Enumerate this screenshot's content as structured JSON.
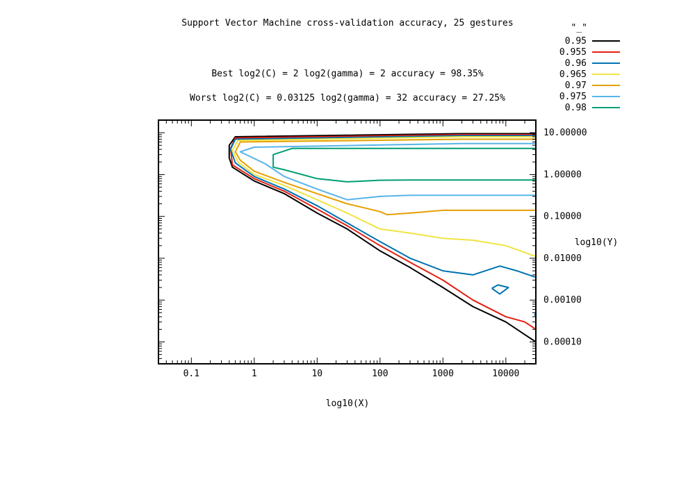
{
  "chart_data": {
    "type": "contour",
    "title": "Support Vector Machine cross-validation accuracy, 25 gestures",
    "annotations": [
      "Best log2(C) = 2  log2(gamma) = 2  accuracy = 98.35%",
      "Worst log2(C) = 0.03125  log2(gamma) = 32   accuracy = 27.25%"
    ],
    "xlabel": "log10(X)",
    "ylabel": "log10(Y)",
    "x_scale": "log",
    "y_scale": "log",
    "xlim": [
      0.03,
      30000
    ],
    "ylim": [
      3e-05,
      20
    ],
    "x_ticks": [
      {
        "value": 0.1,
        "label": "0.1"
      },
      {
        "value": 1,
        "label": "1"
      },
      {
        "value": 10,
        "label": "10"
      },
      {
        "value": 100,
        "label": "100"
      },
      {
        "value": 1000,
        "label": "1000"
      },
      {
        "value": 10000,
        "label": "10000"
      }
    ],
    "y_ticks": [
      {
        "value": 10,
        "label": "10.00000"
      },
      {
        "value": 1,
        "label": "1.00000"
      },
      {
        "value": 0.1,
        "label": "0.10000"
      },
      {
        "value": 0.01,
        "label": "0.01000"
      },
      {
        "value": 0.001,
        "label": "0.00100"
      },
      {
        "value": 0.0001,
        "label": "0.00010"
      }
    ],
    "legend_title": "\"_\"",
    "legend_position": "top-right, outside plot",
    "series": [
      {
        "name": "0.95",
        "color": "#000000",
        "x": [
          30000,
          2000,
          2000,
          0.5,
          0.4,
          0.4,
          0.45,
          1,
          3,
          10,
          30,
          100,
          300,
          1000,
          3000,
          10000,
          20000,
          30000
        ],
        "y": [
          9.5,
          9.5,
          9.5,
          8,
          5,
          2.5,
          1.5,
          0.7,
          0.35,
          0.12,
          0.05,
          0.015,
          0.006,
          0.002,
          0.0007,
          0.0003,
          0.00015,
          0.0001
        ]
      },
      {
        "name": "0.955",
        "color": "#e51e10",
        "x": [
          30000,
          2000,
          0.5,
          0.42,
          0.45,
          1,
          3,
          10,
          30,
          100,
          300,
          1000,
          3000,
          10000,
          20000,
          30000
        ],
        "y": [
          9.0,
          9.0,
          7.5,
          4.2,
          1.7,
          0.8,
          0.4,
          0.15,
          0.06,
          0.02,
          0.008,
          0.003,
          0.001,
          0.0004,
          0.0003,
          0.0002
        ]
      },
      {
        "name": "0.96",
        "color": "#0072b2",
        "x": [
          30000,
          2000,
          0.5,
          0.42,
          0.5,
          1,
          3,
          10,
          30,
          100,
          300,
          1000,
          3000,
          8000,
          15000,
          30000
        ],
        "y": [
          8.5,
          8.5,
          7.0,
          4.0,
          1.9,
          0.9,
          0.45,
          0.18,
          0.07,
          0.025,
          0.01,
          0.005,
          0.004,
          0.0065,
          0.005,
          0.0035
        ]
      },
      {
        "name": "0.965",
        "color": "#f0e442",
        "x": [
          30000,
          2000,
          0.55,
          0.45,
          0.55,
          1,
          3,
          10,
          30,
          100,
          300,
          1000,
          3000,
          10000,
          30000
        ],
        "y": [
          8.0,
          8.0,
          6.5,
          3.8,
          2.0,
          1.0,
          0.55,
          0.25,
          0.12,
          0.05,
          0.04,
          0.03,
          0.027,
          0.02,
          0.011
        ]
      },
      {
        "name": "0.97",
        "color": "#e69f00",
        "x": [
          30000,
          2000,
          0.6,
          0.5,
          0.6,
          1,
          3,
          10,
          30,
          100,
          130,
          300,
          1000,
          30000
        ],
        "y": [
          7.0,
          7.0,
          6.0,
          3.5,
          2.2,
          1.2,
          0.65,
          0.35,
          0.2,
          0.13,
          0.11,
          0.12,
          0.14,
          0.14
        ]
      },
      {
        "name": "0.975",
        "color": "#56b4e9",
        "x": [
          30000,
          2000,
          1,
          0.6,
          1.5,
          3,
          10,
          30,
          100,
          300,
          1000,
          30000
        ],
        "y": [
          5.5,
          5.5,
          4.5,
          3.5,
          1.8,
          0.9,
          0.45,
          0.25,
          0.3,
          0.32,
          0.32,
          0.32
        ]
      },
      {
        "name": "0.98",
        "color": "#009e73",
        "x": [
          30000,
          2000,
          4,
          2,
          2,
          3,
          10,
          30,
          100,
          300,
          1000,
          30000
        ],
        "y": [
          4.2,
          4.2,
          4.2,
          3.0,
          1.5,
          1.3,
          0.8,
          0.67,
          0.73,
          0.74,
          0.74,
          0.74
        ]
      },
      {
        "name": "0.96",
        "color": "#0072b2",
        "x": [
          6000,
          8000,
          11000,
          7500,
          6000
        ],
        "y": [
          0.0019,
          0.0014,
          0.002,
          0.0023,
          0.0019
        ]
      },
      {
        "name": "0.96",
        "color": "#0072b2",
        "x": [
          30000,
          29000,
          30000
        ],
        "y": [
          0.0005,
          0.00045,
          0.0004
        ]
      }
    ]
  }
}
